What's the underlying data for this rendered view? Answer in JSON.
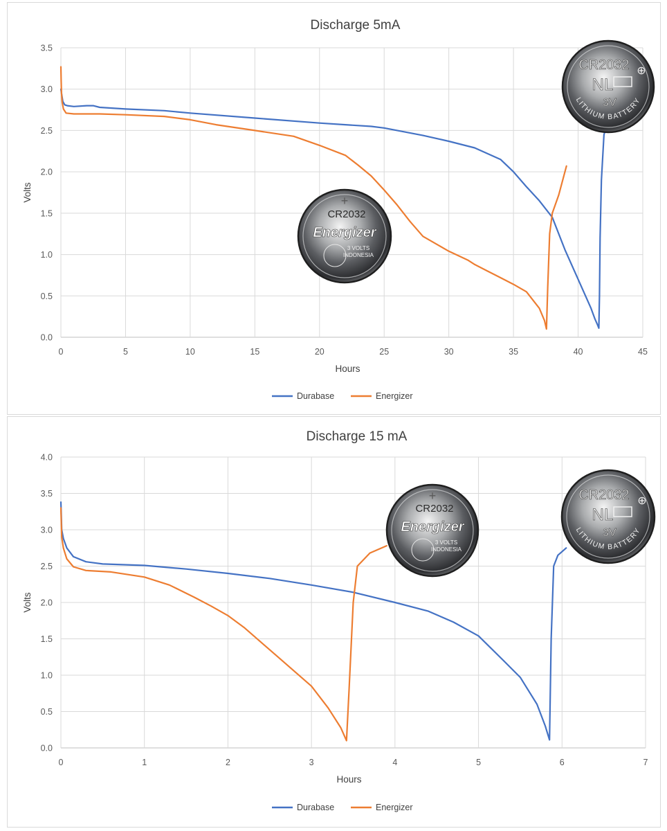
{
  "chart_data": [
    {
      "type": "line",
      "title": "Discharge 5mA",
      "xlabel": "Hours",
      "ylabel": "Volts",
      "xlim": [
        0,
        45
      ],
      "ylim": [
        0,
        3.5
      ],
      "xticks": [
        0,
        5,
        10,
        15,
        20,
        25,
        30,
        35,
        40,
        45
      ],
      "xtick_labels": [
        "0",
        "5",
        "10",
        "15",
        "20",
        "25",
        "30",
        "35",
        "40",
        "45"
      ],
      "yticks": [
        0,
        0.5,
        1,
        1.5,
        2,
        2.5,
        3,
        3.5
      ],
      "ytick_labels": [
        "0.0",
        "0.5",
        "1.0",
        "1.5",
        "2.0",
        "2.5",
        "3.0",
        "3.5"
      ],
      "grid": true,
      "legend_position": "bottom",
      "series": [
        {
          "name": "Durabase",
          "color": "#4472c4",
          "x": [
            0,
            0.05,
            0.15,
            0.3,
            0.5,
            1,
            2,
            2.5,
            3,
            5,
            8,
            10,
            15,
            20,
            22,
            24,
            25,
            28,
            30,
            32,
            34,
            35,
            36,
            37,
            38,
            39,
            40,
            41,
            41.3,
            41.5,
            41.6,
            41.65,
            41.7,
            41.8,
            42,
            42.5
          ],
          "y": [
            3.0,
            2.95,
            2.85,
            2.81,
            2.8,
            2.79,
            2.8,
            2.8,
            2.78,
            2.76,
            2.74,
            2.71,
            2.65,
            2.59,
            2.57,
            2.55,
            2.53,
            2.44,
            2.37,
            2.29,
            2.15,
            2.0,
            1.82,
            1.65,
            1.45,
            1.05,
            0.7,
            0.35,
            0.22,
            0.15,
            0.11,
            0.5,
            1.2,
            1.9,
            2.45,
            2.7
          ]
        },
        {
          "name": "Energizer",
          "color": "#ed7d31",
          "x": [
            0,
            0.02,
            0.05,
            0.1,
            0.2,
            0.4,
            1,
            3,
            5,
            8,
            10,
            12,
            15,
            18,
            20,
            22,
            23,
            24,
            25,
            26,
            27,
            28,
            30,
            31.5,
            32,
            33,
            34,
            35,
            36,
            37,
            37.4,
            37.55,
            37.65,
            37.8,
            38,
            38.5,
            39.1
          ],
          "y": [
            3.27,
            3.1,
            2.95,
            2.84,
            2.76,
            2.71,
            2.7,
            2.7,
            2.69,
            2.67,
            2.63,
            2.57,
            2.5,
            2.43,
            2.32,
            2.2,
            2.08,
            1.95,
            1.78,
            1.6,
            1.4,
            1.22,
            1.04,
            0.93,
            0.88,
            0.8,
            0.72,
            0.64,
            0.55,
            0.35,
            0.2,
            0.1,
            0.6,
            1.25,
            1.5,
            1.72,
            2.07
          ]
        }
      ],
      "images": [
        {
          "name": "durabase-coin",
          "text_lines": [
            "CR2032",
            "NL",
            "3V",
            "LITHIUM BATTERY"
          ]
        },
        {
          "name": "energizer-coin",
          "text_lines": [
            "CR2032",
            "Energizer",
            "3 VOLTS",
            "INDONESIA"
          ]
        }
      ]
    },
    {
      "type": "line",
      "title": "Discharge 15 mA",
      "xlabel": "Hours",
      "ylabel": "Volts",
      "xlim": [
        0,
        7
      ],
      "ylim": [
        0,
        4
      ],
      "xticks": [
        0,
        1,
        2,
        3,
        4,
        5,
        6,
        7
      ],
      "xtick_labels": [
        "0",
        "1",
        "2",
        "3",
        "4",
        "5",
        "6",
        "7"
      ],
      "yticks": [
        0,
        0.5,
        1,
        1.5,
        2,
        2.5,
        3,
        3.5,
        4
      ],
      "ytick_labels": [
        "0.0",
        "0.5",
        "1.0",
        "1.5",
        "2.0",
        "2.5",
        "3.0",
        "3.5",
        "4.0"
      ],
      "grid": true,
      "legend_position": "bottom",
      "series": [
        {
          "name": "Durabase",
          "color": "#4472c4",
          "x": [
            0,
            0.01,
            0.03,
            0.07,
            0.15,
            0.3,
            0.5,
            1,
            1.5,
            2,
            2.5,
            3,
            3.5,
            4,
            4.4,
            4.7,
            5,
            5.3,
            5.5,
            5.7,
            5.8,
            5.85,
            5.87,
            5.9,
            5.95,
            6.05
          ],
          "y": [
            3.38,
            3.0,
            2.88,
            2.75,
            2.63,
            2.56,
            2.53,
            2.51,
            2.46,
            2.4,
            2.33,
            2.24,
            2.14,
            2.0,
            1.88,
            1.73,
            1.54,
            1.2,
            0.97,
            0.6,
            0.3,
            0.11,
            1.5,
            2.5,
            2.65,
            2.75
          ]
        },
        {
          "name": "Energizer",
          "color": "#ed7d31",
          "x": [
            0,
            0.01,
            0.03,
            0.07,
            0.15,
            0.3,
            0.6,
            1,
            1.3,
            1.6,
            1.8,
            2,
            2.2,
            2.4,
            2.6,
            2.8,
            3,
            3.2,
            3.35,
            3.42,
            3.45,
            3.5,
            3.55,
            3.7,
            3.9
          ],
          "y": [
            3.3,
            2.9,
            2.75,
            2.6,
            2.49,
            2.44,
            2.42,
            2.35,
            2.24,
            2.07,
            1.95,
            1.82,
            1.65,
            1.45,
            1.25,
            1.05,
            0.85,
            0.55,
            0.28,
            0.1,
            0.8,
            2.0,
            2.5,
            2.68,
            2.78
          ]
        }
      ],
      "images": [
        {
          "name": "energizer-coin",
          "text_lines": [
            "CR2032",
            "Energizer",
            "3 VOLTS",
            "INDONESIA"
          ]
        },
        {
          "name": "durabase-coin",
          "text_lines": [
            "CR2032",
            "NL",
            "3V",
            "LITHIUM BATTERY"
          ]
        }
      ]
    }
  ]
}
